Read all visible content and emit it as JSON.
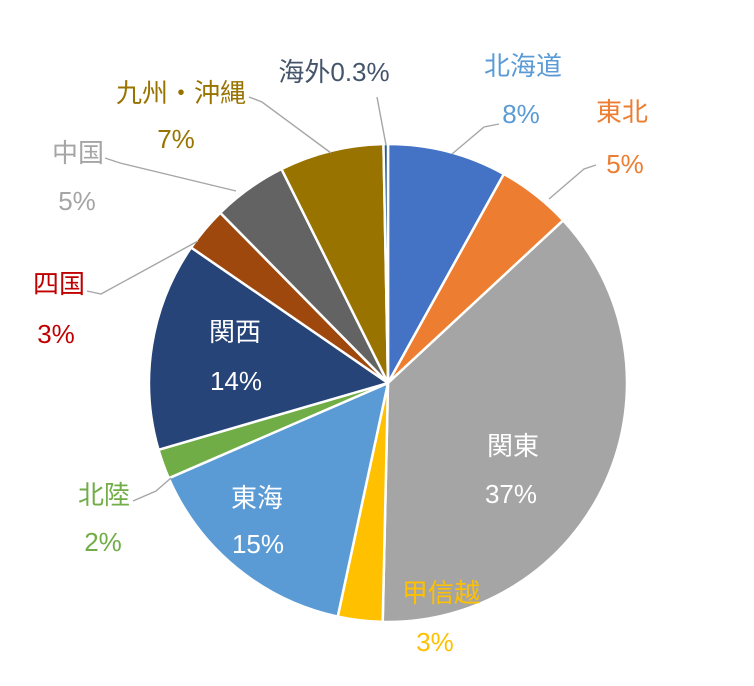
{
  "chart_data": {
    "type": "pie",
    "title": "",
    "unit": "%",
    "direction": "clockwise",
    "start_angle_deg": 0,
    "background": "#FFFFFF",
    "leader_line_color": "#A6A6A6",
    "slice_border_color": "#FFFFFF",
    "slices": [
      {
        "key": "hokkaido",
        "name": "北海道",
        "value": 8,
        "label": "8%",
        "color": "#4472C4",
        "label_color": "#5B9BD5",
        "label_position": "outside"
      },
      {
        "key": "tohoku",
        "name": "東北",
        "value": 5,
        "label": "5%",
        "color": "#ED7D31",
        "label_color": "#ED7D31",
        "label_position": "outside"
      },
      {
        "key": "kanto",
        "name": "関東",
        "value": 37,
        "label": "37%",
        "color": "#A5A5A5",
        "label_color": "#FFFFFF",
        "label_position": "inside"
      },
      {
        "key": "koshinetsu",
        "name": "甲信越",
        "value": 3,
        "label": "3%",
        "color": "#FFC000",
        "label_color": "#FFC000",
        "label_position": "outside"
      },
      {
        "key": "tokai",
        "name": "東海",
        "value": 15,
        "label": "15%",
        "color": "#5B9BD5",
        "label_color": "#FFFFFF",
        "label_position": "inside"
      },
      {
        "key": "hokuriku",
        "name": "北陸",
        "value": 2,
        "label": "2%",
        "color": "#70AD47",
        "label_color": "#70AD47",
        "label_position": "outside"
      },
      {
        "key": "kansai",
        "name": "関西",
        "value": 14,
        "label": "14%",
        "color": "#264478",
        "label_color": "#FFFFFF",
        "label_position": "inside"
      },
      {
        "key": "shikoku",
        "name": "四国",
        "value": 3,
        "label": "3%",
        "color": "#9E480E",
        "label_color": "#C00000",
        "label_position": "outside"
      },
      {
        "key": "chugoku",
        "name": "中国",
        "value": 5,
        "label": "5%",
        "color": "#636363",
        "label_color": "#A5A5A5",
        "label_position": "outside"
      },
      {
        "key": "kyushu-okinawa",
        "name": "九州・沖縄",
        "value": 7,
        "label": "7%",
        "color": "#997300",
        "label_color": "#997300",
        "label_position": "outside"
      },
      {
        "key": "kaigai",
        "name": "海外",
        "value": 0.3,
        "label": "0.3%",
        "color": "#255E91",
        "label_color": "#44546A",
        "label_position": "outside"
      }
    ]
  }
}
